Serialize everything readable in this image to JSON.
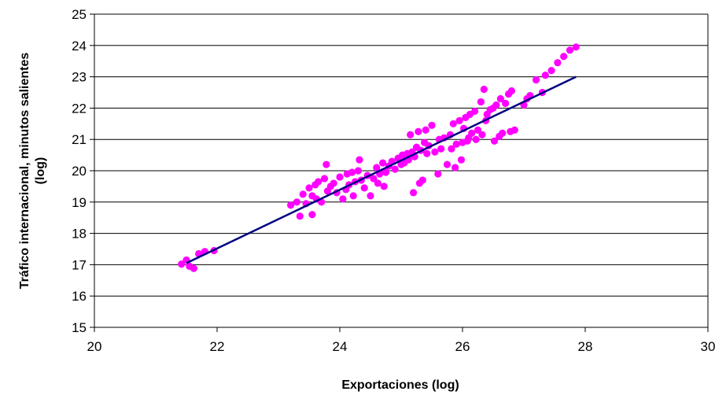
{
  "chart_data": {
    "type": "scatter",
    "title": "",
    "xlabel": "Exportaciones (log)",
    "ylabel_line1": "Tráfico internacional, minutos salientes",
    "ylabel_line2": "(log)",
    "xlim": [
      20,
      30
    ],
    "ylim": [
      15,
      25
    ],
    "x_ticks": [
      20,
      22,
      24,
      26,
      28,
      30
    ],
    "y_ticks": [
      15,
      16,
      17,
      18,
      19,
      20,
      21,
      22,
      23,
      24,
      25
    ],
    "grid": "horizontal",
    "legend": "none",
    "colors": {
      "points": "#ff00ff",
      "trend": "#000080",
      "grid": "#000000"
    },
    "trend_line": {
      "x": [
        21.5,
        27.85
      ],
      "y": [
        17.05,
        23.0
      ]
    },
    "series": [
      {
        "points": [
          [
            21.42,
            17.02
          ],
          [
            21.5,
            17.15
          ],
          [
            21.55,
            16.95
          ],
          [
            21.62,
            16.88
          ],
          [
            21.7,
            17.35
          ],
          [
            21.8,
            17.42
          ],
          [
            21.95,
            17.45
          ],
          [
            23.2,
            18.9
          ],
          [
            23.3,
            19.0
          ],
          [
            23.35,
            18.55
          ],
          [
            23.4,
            19.25
          ],
          [
            23.45,
            18.95
          ],
          [
            23.5,
            19.45
          ],
          [
            23.55,
            18.6
          ],
          [
            23.55,
            19.2
          ],
          [
            23.6,
            19.55
          ],
          [
            23.62,
            19.1
          ],
          [
            23.65,
            19.65
          ],
          [
            23.7,
            19.0
          ],
          [
            23.75,
            19.75
          ],
          [
            23.78,
            20.2
          ],
          [
            23.8,
            19.35
          ],
          [
            23.85,
            19.5
          ],
          [
            23.9,
            19.6
          ],
          [
            23.95,
            19.3
          ],
          [
            24.0,
            19.8
          ],
          [
            24.05,
            19.1
          ],
          [
            24.1,
            19.4
          ],
          [
            24.12,
            19.9
          ],
          [
            24.15,
            19.55
          ],
          [
            24.2,
            19.95
          ],
          [
            24.22,
            19.2
          ],
          [
            24.25,
            19.65
          ],
          [
            24.3,
            20.0
          ],
          [
            24.32,
            20.35
          ],
          [
            24.35,
            19.7
          ],
          [
            24.4,
            19.45
          ],
          [
            24.45,
            19.85
          ],
          [
            24.5,
            19.2
          ],
          [
            24.55,
            19.75
          ],
          [
            24.6,
            20.1
          ],
          [
            24.62,
            19.6
          ],
          [
            24.65,
            19.9
          ],
          [
            24.7,
            20.25
          ],
          [
            24.72,
            19.5
          ],
          [
            24.75,
            19.95
          ],
          [
            24.8,
            20.15
          ],
          [
            24.85,
            20.3
          ],
          [
            24.9,
            20.05
          ],
          [
            24.95,
            20.4
          ],
          [
            25.0,
            20.2
          ],
          [
            25.02,
            20.5
          ],
          [
            25.05,
            20.25
          ],
          [
            25.1,
            20.55
          ],
          [
            25.12,
            20.35
          ],
          [
            25.15,
            21.15
          ],
          [
            25.18,
            20.6
          ],
          [
            25.2,
            19.3
          ],
          [
            25.22,
            20.45
          ],
          [
            25.25,
            20.75
          ],
          [
            25.28,
            21.25
          ],
          [
            25.3,
            19.6
          ],
          [
            25.32,
            20.65
          ],
          [
            25.35,
            19.7
          ],
          [
            25.38,
            20.9
          ],
          [
            25.4,
            21.3
          ],
          [
            25.42,
            20.55
          ],
          [
            25.45,
            20.8
          ],
          [
            25.5,
            21.45
          ],
          [
            25.55,
            20.6
          ],
          [
            25.6,
            19.9
          ],
          [
            25.62,
            21.0
          ],
          [
            25.65,
            20.7
          ],
          [
            25.7,
            21.05
          ],
          [
            25.75,
            20.2
          ],
          [
            25.8,
            21.15
          ],
          [
            25.82,
            20.7
          ],
          [
            25.85,
            21.5
          ],
          [
            25.88,
            20.1
          ],
          [
            25.9,
            20.85
          ],
          [
            25.95,
            21.6
          ],
          [
            25.98,
            20.35
          ],
          [
            26.0,
            20.9
          ],
          [
            26.02,
            21.35
          ],
          [
            26.05,
            21.7
          ],
          [
            26.08,
            20.95
          ],
          [
            26.1,
            21.05
          ],
          [
            26.12,
            21.8
          ],
          [
            26.15,
            21.2
          ],
          [
            26.2,
            21.9
          ],
          [
            26.22,
            21.0
          ],
          [
            26.25,
            21.3
          ],
          [
            26.3,
            22.2
          ],
          [
            26.32,
            21.15
          ],
          [
            26.35,
            22.6
          ],
          [
            26.38,
            21.6
          ],
          [
            26.4,
            21.8
          ],
          [
            26.45,
            21.95
          ],
          [
            26.5,
            22.0
          ],
          [
            26.52,
            20.95
          ],
          [
            26.55,
            22.1
          ],
          [
            26.6,
            21.1
          ],
          [
            26.62,
            22.3
          ],
          [
            26.65,
            21.2
          ],
          [
            26.7,
            22.15
          ],
          [
            26.75,
            22.45
          ],
          [
            26.78,
            21.25
          ],
          [
            26.8,
            22.55
          ],
          [
            26.85,
            21.3
          ],
          [
            27.0,
            22.1
          ],
          [
            27.05,
            22.3
          ],
          [
            27.1,
            22.4
          ],
          [
            27.2,
            22.9
          ],
          [
            27.3,
            22.5
          ],
          [
            27.35,
            23.05
          ],
          [
            27.45,
            23.2
          ],
          [
            27.55,
            23.45
          ],
          [
            27.65,
            23.65
          ],
          [
            27.75,
            23.85
          ],
          [
            27.85,
            23.95
          ]
        ]
      }
    ]
  }
}
